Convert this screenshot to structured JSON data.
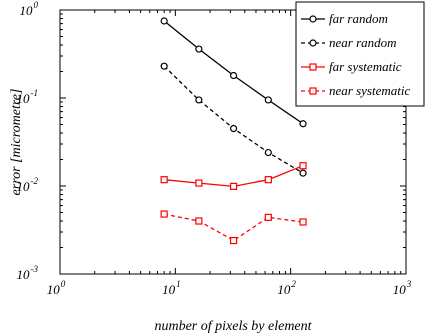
{
  "chart_data": {
    "type": "line",
    "xlabel": "number of pixels by element",
    "ylabel": "error [micrometre]",
    "xscale": "log",
    "yscale": "log",
    "xlim": [
      1,
      1000
    ],
    "ylim": [
      0.001,
      1
    ],
    "grid": false,
    "legend_position": "top-right",
    "x_ticks": [
      {
        "value": 1,
        "base": "10",
        "exp": "0"
      },
      {
        "value": 10,
        "base": "10",
        "exp": "1"
      },
      {
        "value": 100,
        "base": "10",
        "exp": "2"
      },
      {
        "value": 1000,
        "base": "10",
        "exp": "3"
      }
    ],
    "y_ticks": [
      {
        "value": 0.001,
        "base": "10",
        "exp": "-3"
      },
      {
        "value": 0.01,
        "base": "10",
        "exp": "-2"
      },
      {
        "value": 0.1,
        "base": "10",
        "exp": "-1"
      },
      {
        "value": 1,
        "base": "10",
        "exp": "0"
      }
    ],
    "x": [
      8,
      16,
      32,
      64,
      128
    ],
    "series": [
      {
        "name": "far random",
        "color": "#000000",
        "dashed": false,
        "marker": "circle",
        "values": [
          0.75,
          0.36,
          0.18,
          0.095,
          0.051
        ]
      },
      {
        "name": "near random",
        "color": "#000000",
        "dashed": true,
        "marker": "circle",
        "values": [
          0.23,
          0.095,
          0.045,
          0.024,
          0.014
        ]
      },
      {
        "name": "far systematic",
        "color": "#ff0000",
        "dashed": false,
        "marker": "square",
        "values": [
          0.0118,
          0.0108,
          0.0099,
          0.0118,
          0.017
        ]
      },
      {
        "name": "near systematic",
        "color": "#ff0000",
        "dashed": true,
        "marker": "square",
        "values": [
          0.0048,
          0.004,
          0.0024,
          0.0044,
          0.0039
        ]
      }
    ]
  }
}
